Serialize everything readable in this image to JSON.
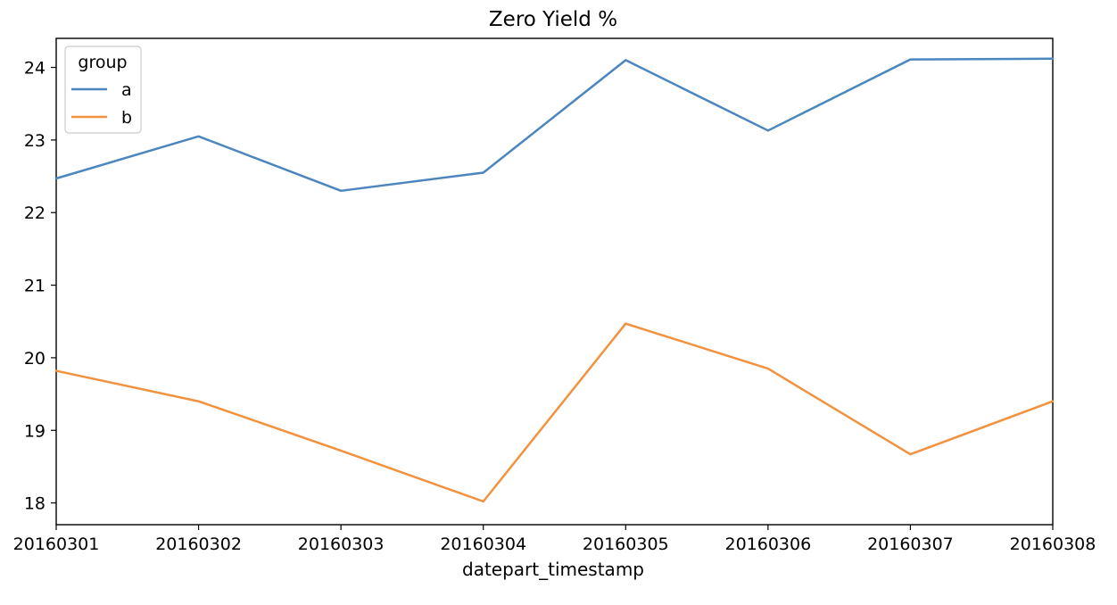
{
  "chart_data": {
    "type": "line",
    "title": "Zero Yield %",
    "xlabel": "datepart_timestamp",
    "ylabel": "",
    "categories": [
      "20160301",
      "20160302",
      "20160303",
      "20160304",
      "20160305",
      "20160306",
      "20160307",
      "20160308"
    ],
    "yticks": [
      18,
      19,
      20,
      21,
      22,
      23,
      24
    ],
    "ylim": [
      17.7,
      24.4
    ],
    "grid": false,
    "legend": {
      "title": "group",
      "position": "top-left"
    },
    "series": [
      {
        "name": "a",
        "color": "#4c86be",
        "values": [
          22.47,
          23.05,
          22.3,
          22.55,
          24.1,
          23.13,
          24.11,
          24.12
        ]
      },
      {
        "name": "b",
        "color": "#f2913e",
        "values": [
          19.82,
          19.4,
          18.72,
          18.02,
          20.47,
          19.85,
          18.67,
          19.4
        ]
      }
    ]
  }
}
